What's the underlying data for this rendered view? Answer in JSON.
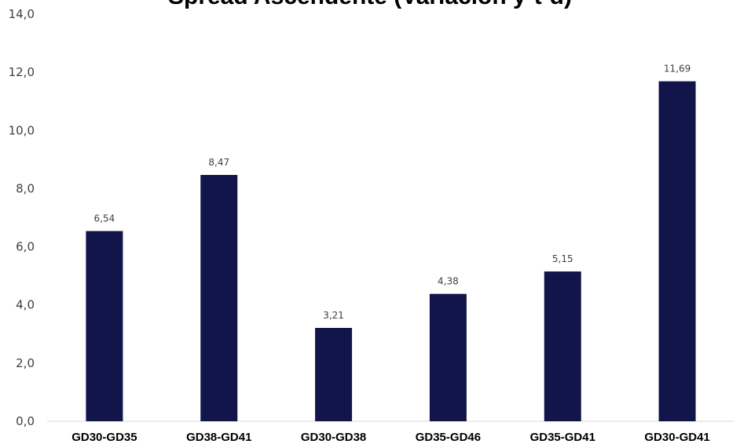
{
  "chart_data": {
    "type": "bar",
    "title": "Spread Ascendente (Variación y-t-d)",
    "xlabel": "",
    "ylabel": "",
    "categories": [
      "GD30-GD35",
      "GD38-GD41",
      "GD30-GD38",
      "GD35-GD46",
      "GD35-GD41",
      "GD30-GD41"
    ],
    "values": [
      6.54,
      8.47,
      3.21,
      4.38,
      5.15,
      11.69
    ],
    "value_labels": [
      "6,54",
      "8,47",
      "3,21",
      "4,38",
      "5,15",
      "11,69"
    ],
    "ylim": [
      0,
      14
    ],
    "yticks": [
      "0,0",
      "2,0",
      "4,0",
      "6,0",
      "8,0",
      "10,0",
      "12,0",
      "14,0"
    ],
    "grid": false,
    "legend": "none",
    "bar_color": "#12154a"
  }
}
